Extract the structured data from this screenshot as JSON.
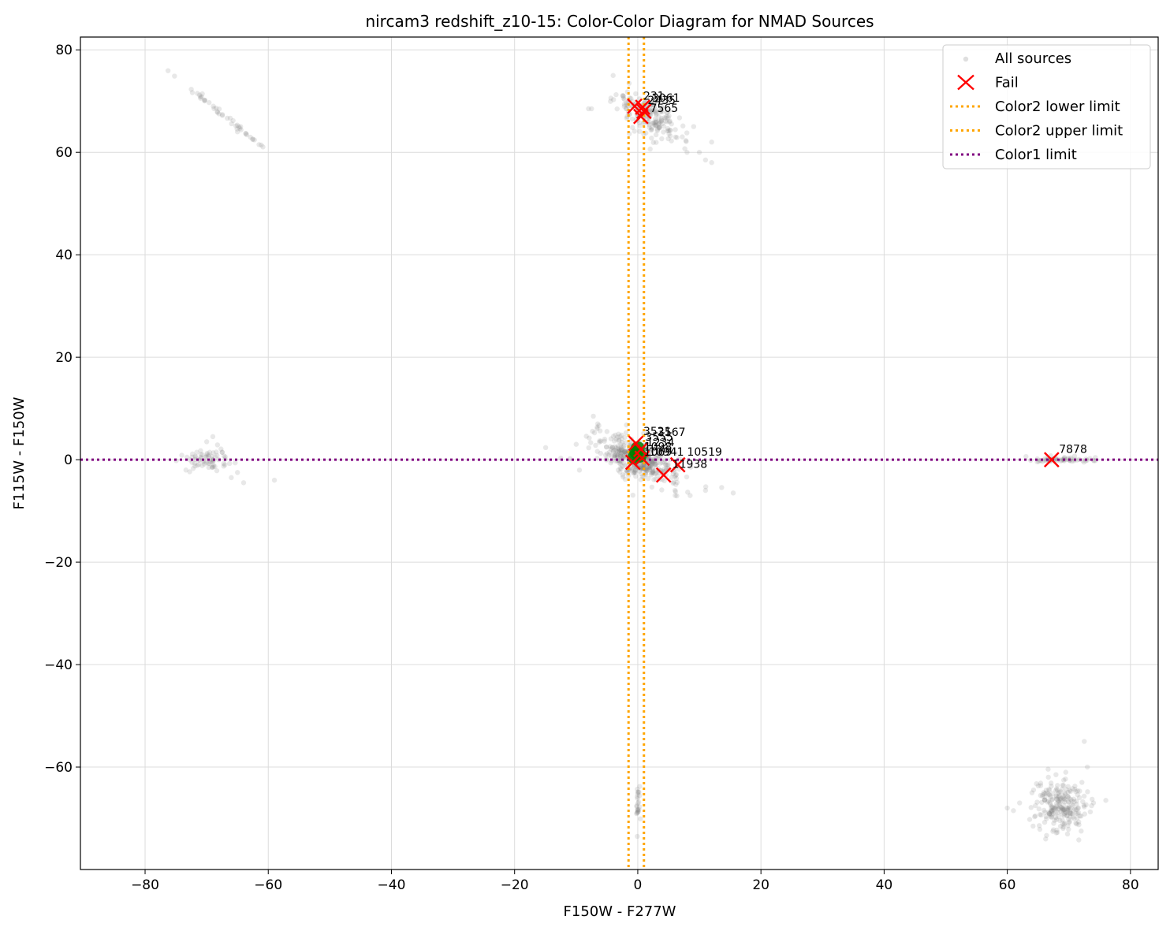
{
  "chart_data": {
    "type": "scatter",
    "title": "nircam3 redshift_z10-15: Color-Color Diagram for NMAD Sources",
    "xlabel": "F150W - F277W",
    "ylabel": "F115W - F150W",
    "xlim": [
      -90.5,
      84.5
    ],
    "ylim": [
      -80,
      82.5
    ],
    "xticks": [
      -80,
      -60,
      -40,
      -20,
      0,
      20,
      40,
      60,
      80
    ],
    "yticks": [
      -60,
      -40,
      -20,
      0,
      20,
      40,
      60,
      80
    ],
    "xtick_labels": [
      "−80",
      "−60",
      "−40",
      "−20",
      "0",
      "20",
      "40",
      "60",
      "80"
    ],
    "ytick_labels": [
      "−60",
      "−40",
      "−20",
      "0",
      "20",
      "40",
      "60",
      "80"
    ],
    "grid": true,
    "legend_position": "upper right",
    "colors": {
      "all_sources": "#808080",
      "fail": "#ff0000",
      "pass": "#008000",
      "color2_limits": "#ffa500",
      "color1_limit": "#800080"
    },
    "legend": [
      {
        "label": "All sources",
        "kind": "point",
        "color": "#808080"
      },
      {
        "label": "Fail",
        "kind": "x",
        "color": "#ff0000"
      },
      {
        "label": "Color2 lower limit",
        "kind": "dotted",
        "color": "#ffa500"
      },
      {
        "label": "Color2 upper limit",
        "kind": "dotted",
        "color": "#ffa500"
      },
      {
        "label": "Color1 limit",
        "kind": "dotted",
        "color": "#800080"
      }
    ],
    "limits": {
      "color2_lower": -1.5,
      "color2_upper": 1.0,
      "color1": 0.0
    },
    "all_sources_clusters": [
      {
        "x": 0,
        "y": 0,
        "sx": 3.5,
        "sy": 1.8,
        "n": 420,
        "slope": -0.45
      },
      {
        "x": 2,
        "y": 67,
        "sx": 2.6,
        "sy": 2.0,
        "n": 190,
        "slope": -0.55
      },
      {
        "x": 68.5,
        "y": -67.5,
        "sx": 2.0,
        "sy": 2.5,
        "n": 230,
        "slope": 0
      },
      {
        "x": -70,
        "y": 0,
        "sx": 2.2,
        "sy": 1.0,
        "n": 70,
        "slope": 0
      },
      {
        "x": 69,
        "y": 0,
        "sx": 3.0,
        "sy": 0.25,
        "n": 60,
        "slope": 0
      },
      {
        "x": 0,
        "y": -68,
        "sx": 0.2,
        "sy": 2.0,
        "n": 25,
        "slope": 0
      },
      {
        "x": -67.5,
        "y": 67.5,
        "sx": 3.0,
        "sy": 0.3,
        "n": 40,
        "slope": -1.0
      }
    ],
    "all_sources_outliers": [
      [
        -72.5,
        72.3
      ],
      [
        -71.5,
        71.5
      ],
      [
        -61.5,
        61.5
      ],
      [
        -62.5,
        62.5
      ],
      [
        -65,
        64
      ],
      [
        -59,
        -4
      ],
      [
        -64,
        -4.5
      ],
      [
        -65,
        -2.5
      ],
      [
        -66,
        -3.5
      ],
      [
        -69,
        4.5
      ],
      [
        -70,
        3.5
      ],
      [
        -8,
        68.5
      ],
      [
        -7.5,
        68.5
      ],
      [
        -4,
        75
      ],
      [
        12,
        58
      ],
      [
        11,
        58.5
      ],
      [
        10,
        60
      ],
      [
        8,
        60
      ],
      [
        12,
        62
      ],
      [
        15.5,
        -6.5
      ],
      [
        11,
        -6
      ],
      [
        8.5,
        -7
      ],
      [
        -10,
        3
      ],
      [
        -5,
        5.5
      ],
      [
        -3.5,
        4
      ],
      [
        60,
        -68
      ],
      [
        61,
        -68.5
      ],
      [
        62,
        -67
      ],
      [
        72.5,
        -55
      ],
      [
        73,
        -60
      ],
      [
        72,
        -72.5
      ],
      [
        76,
        -66.5
      ],
      [
        74,
        -67
      ],
      [
        -12.5,
        0.3
      ],
      [
        -11,
        0.2
      ]
    ],
    "fail_points": [
      {
        "id": "231",
        "x": -0.5,
        "y": 69.0
      },
      {
        "id": "3061",
        "x": 0.8,
        "y": 68.8
      },
      {
        "id": "7565",
        "x": 0.5,
        "y": 67.0
      },
      {
        "id": "2435",
        "x": 1.0,
        "y": 68.0
      },
      {
        "id": "7878",
        "x": 67.2,
        "y": 0.0
      },
      {
        "id": "11938",
        "x": 4.2,
        "y": -3.0
      },
      {
        "id": "10519",
        "x": 6.5,
        "y": -1.0
      },
      {
        "id": "3521",
        "x": -0.3,
        "y": 3.2
      },
      {
        "id": "3567",
        "x": 0.5,
        "y": 2.0
      },
      {
        "id": "10941",
        "x": -0.8,
        "y": -0.5
      },
      {
        "id": "1234",
        "x": 0.7,
        "y": 0.3
      }
    ],
    "pass_points": [
      {
        "x": -0.2,
        "y": 1.5
      },
      {
        "x": 0.3,
        "y": 0.8
      },
      {
        "x": 0.0,
        "y": 2.2
      },
      {
        "x": -0.5,
        "y": 0.5
      }
    ],
    "point_labels": [
      {
        "text": "231",
        "x": 0.9,
        "y": 70.3
      },
      {
        "text": "3061",
        "x": 2.3,
        "y": 69.9
      },
      {
        "text": "2435",
        "x": 1.6,
        "y": 69.4
      },
      {
        "text": "7565",
        "x": 2.0,
        "y": 67.9
      },
      {
        "text": "7878",
        "x": 68.4,
        "y": 1.3
      },
      {
        "text": "11938",
        "x": 5.6,
        "y": -1.6
      },
      {
        "text": "10519",
        "x": 8.0,
        "y": 0.8
      },
      {
        "text": "3521",
        "x": 0.9,
        "y": 4.8
      },
      {
        "text": "3567",
        "x": 3.2,
        "y": 4.6
      },
      {
        "text": "3555",
        "x": 1.2,
        "y": 3.7
      },
      {
        "text": "1234",
        "x": 1.4,
        "y": 2.6
      },
      {
        "text": "1098",
        "x": 1.0,
        "y": 1.8
      },
      {
        "text": "10941",
        "x": 1.8,
        "y": 0.8
      },
      {
        "text": "1069",
        "x": 1.0,
        "y": 0.8
      }
    ]
  }
}
